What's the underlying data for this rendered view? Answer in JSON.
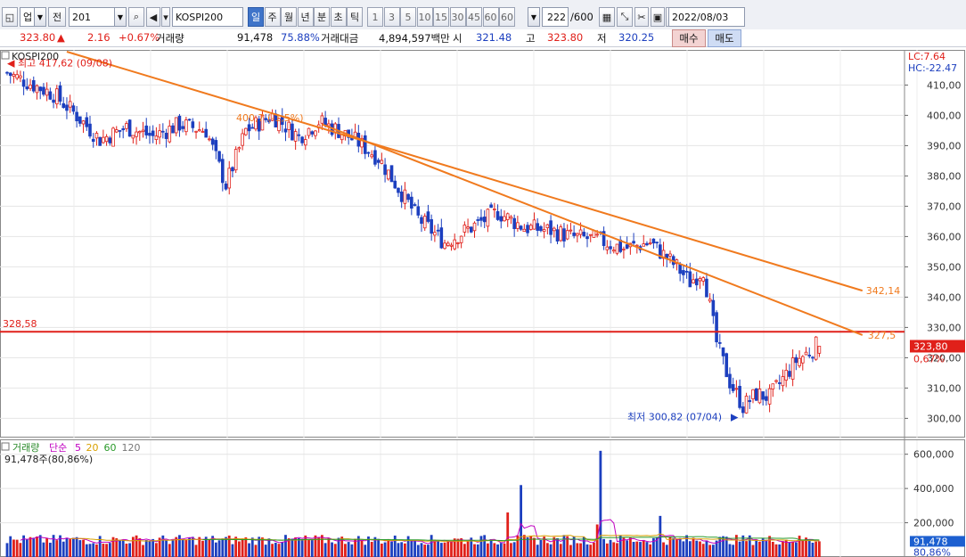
{
  "toolbar": {
    "market_select": "업",
    "prev_label": "전",
    "code": "201",
    "name": "KOSPI200",
    "period_tabs": [
      "일",
      "주",
      "월",
      "년",
      "분",
      "초",
      "틱"
    ],
    "active_period": "일",
    "minute_steps": [
      "1",
      "3",
      "5",
      "10",
      "15",
      "30",
      "45",
      "60"
    ],
    "minute_value": "60",
    "count": "222",
    "count_total": "/600",
    "date": "2022/08/03"
  },
  "quote": {
    "price": "323.80",
    "direction_arrow": "▲",
    "change": "2.16",
    "change_pct": "+0.67%",
    "volume_label": "거래량",
    "volume": "91,478",
    "volume_ratio": "75.88%",
    "amount_label": "거래대금",
    "amount": "4,894,597백만",
    "open_label": "시",
    "open": "321.48",
    "high_label": "고",
    "high": "323.80",
    "low_label": "저",
    "low": "320.25",
    "buy_label": "매수",
    "sell_label": "매도"
  },
  "price_panel": {
    "title": "KOSPI200",
    "legend_lc": "LC:7.64",
    "legend_hc": "HC:-22.47",
    "y_ticks": [
      "410,00",
      "400,00",
      "390,00",
      "380,00",
      "370,00",
      "360,00",
      "350,00",
      "340,00",
      "330,00",
      "320,00",
      "310,00",
      "300,00"
    ],
    "high_note": "최고 417,62 (09/08)",
    "low_note": "최저 300,82 (07/04)",
    "hline_label": "328,58",
    "trend_upper_label": "342,14",
    "trend_lower_label": "327,5",
    "trend_mid_note": "400,7 (-1,5%)",
    "last_price_label": "323,80",
    "last_pct_label": "0,67%"
  },
  "volume_panel": {
    "legend": [
      "거래량",
      "단순",
      "5",
      "20",
      "60",
      "120"
    ],
    "note": "91,478주(80,86%)",
    "y_ticks": [
      "600,000",
      "400,000",
      "200,000"
    ],
    "last_label": "91,478",
    "last_pct": "80,86%"
  },
  "chart_data": {
    "type": "candlestick",
    "ylim": [
      296,
      421
    ],
    "volume_ylim": [
      0,
      640000
    ],
    "hline": 328.58,
    "high": {
      "value": 417.62,
      "date": "09/08"
    },
    "low": {
      "value": 300.82,
      "date": "07/04"
    },
    "colors": {
      "up": "#e0201a",
      "down": "#1c3fbf",
      "trend": "#f07a1e",
      "hline": "#e0201a",
      "ma5": "#c000c0",
      "ma20": "#d8a000",
      "ma60": "#2a9a2a"
    },
    "anchors": [
      [
        0,
        414
      ],
      [
        8,
        410
      ],
      [
        14,
        407
      ],
      [
        20,
        401
      ],
      [
        28,
        392
      ],
      [
        36,
        396
      ],
      [
        44,
        393
      ],
      [
        52,
        397
      ],
      [
        60,
        395
      ],
      [
        66,
        377
      ],
      [
        72,
        395
      ],
      [
        80,
        400
      ],
      [
        88,
        393
      ],
      [
        94,
        398
      ],
      [
        100,
        395
      ],
      [
        106,
        391
      ],
      [
        112,
        386
      ],
      [
        118,
        376
      ],
      [
        124,
        366
      ],
      [
        132,
        358
      ],
      [
        140,
        363
      ],
      [
        148,
        368
      ],
      [
        156,
        363
      ],
      [
        164,
        362
      ],
      [
        170,
        360
      ],
      [
        178,
        359
      ],
      [
        186,
        356
      ],
      [
        194,
        358
      ],
      [
        202,
        350
      ],
      [
        206,
        345
      ],
      [
        210,
        349
      ],
      [
        214,
        325
      ],
      [
        218,
        312
      ],
      [
        222,
        304
      ],
      [
        226,
        308
      ],
      [
        230,
        307
      ],
      [
        234,
        313
      ],
      [
        238,
        319
      ],
      [
        242,
        322
      ],
      [
        246,
        326
      ]
    ],
    "trendlines": [
      {
        "start": [
          18,
          421
        ],
        "end": [
          258,
          342.14
        ]
      },
      {
        "start": [
          95,
          397
        ],
        "end": [
          258,
          327.5
        ]
      }
    ]
  }
}
